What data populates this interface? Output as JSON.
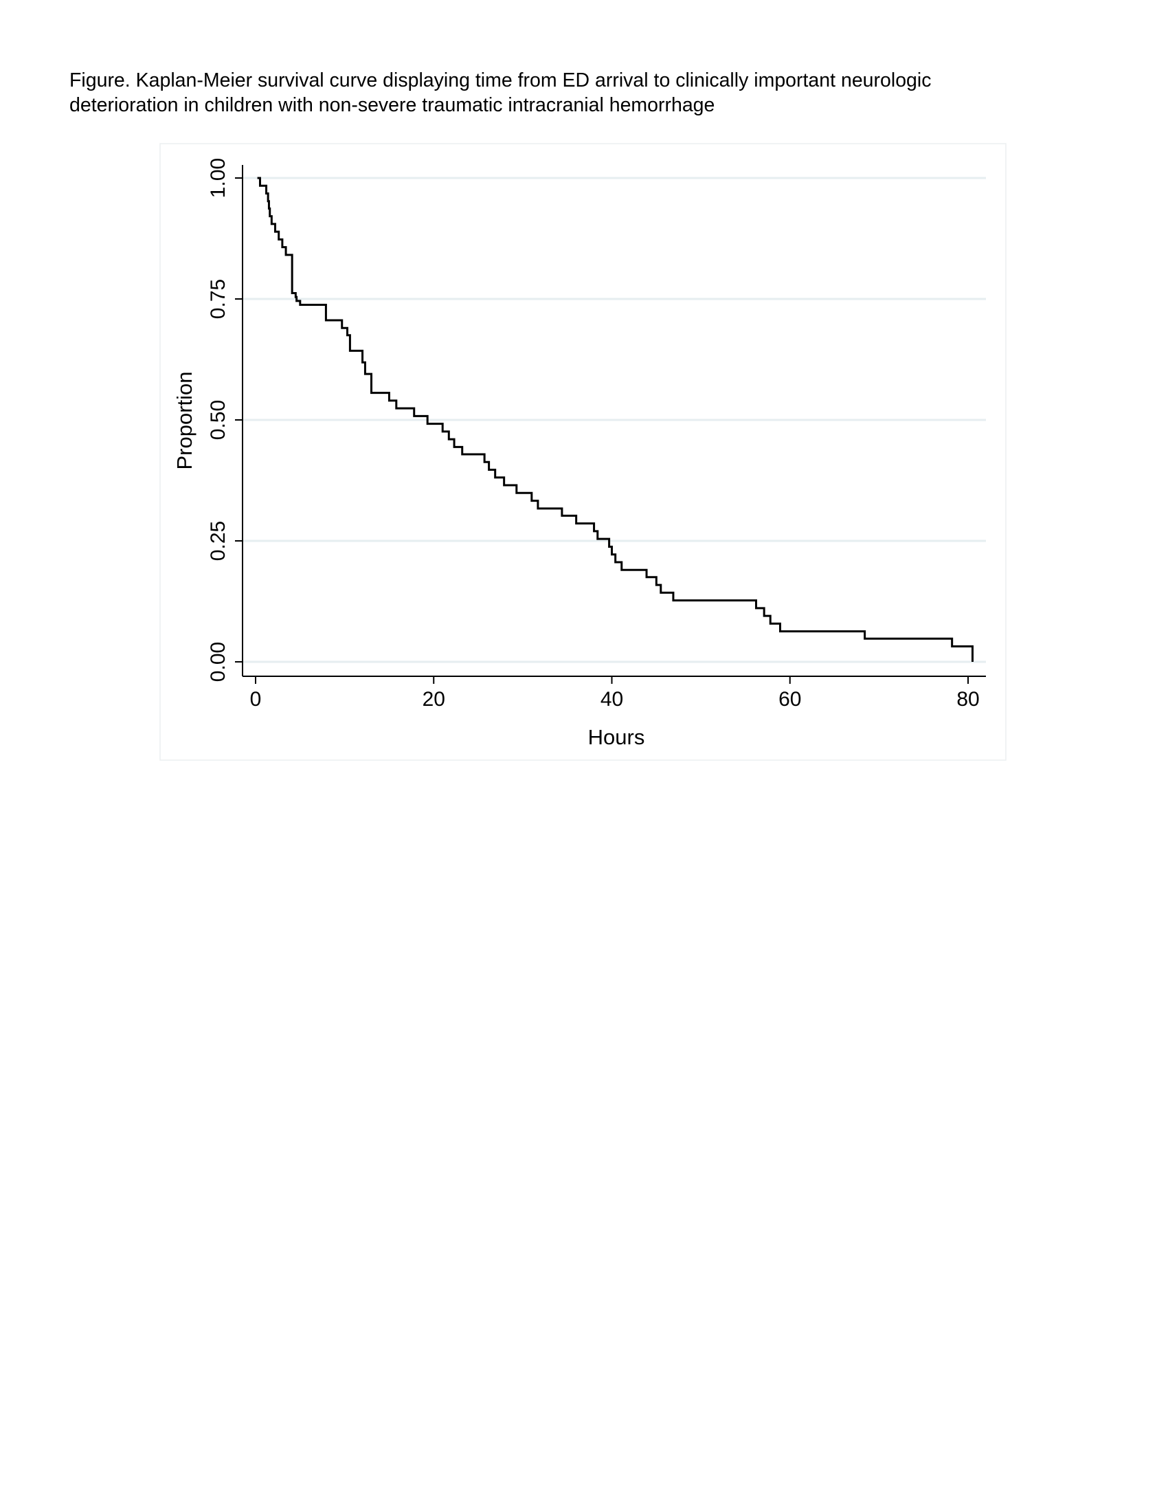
{
  "caption": "Figure. Kaplan-Meier survival curve displaying time from ED arrival to clinically important neurologic deterioration in children with non-severe traumatic intracranial hemorrhage",
  "chart_data": {
    "type": "line",
    "step": true,
    "title": "",
    "xlabel": "Hours",
    "ylabel": "Proportion",
    "xlim": [
      0,
      80
    ],
    "ylim": [
      0,
      1
    ],
    "xticks": [
      0,
      20,
      40,
      60,
      80
    ],
    "xtick_labels": [
      "0",
      "20",
      "40",
      "60",
      "80"
    ],
    "yticks": [
      0,
      0.25,
      0.5,
      0.75,
      1
    ],
    "ytick_labels": [
      "0.00",
      "0.25",
      "0.50",
      "0.75",
      "1.00"
    ],
    "grid": "horizontal",
    "grid_color": "#e6eef0",
    "line_color": "#000000",
    "series": [
      {
        "x": [
          0.2,
          0.5,
          1.2,
          1.4,
          1.5,
          1.6,
          1.8,
          2.2,
          2.6,
          3.0,
          3.4,
          4.1,
          4.5,
          4.6,
          5.0,
          7.9,
          9.7,
          10.3,
          10.6,
          12.0,
          12.3,
          13.0,
          15.0,
          15.8,
          17.8,
          19.3,
          21.0,
          21.7,
          22.3,
          23.2,
          25.7,
          26.2,
          26.9,
          27.9,
          29.3,
          31.0,
          31.7,
          34.4,
          36.0,
          38.0,
          38.4,
          39.7,
          40.0,
          40.4,
          41.1,
          43.9,
          45.0,
          45.5,
          46.9,
          56.2,
          57.1,
          57.8,
          58.9,
          68.4,
          78.2,
          80.5
        ],
        "y": [
          1.0,
          0.984,
          0.968,
          0.952,
          0.937,
          0.921,
          0.905,
          0.889,
          0.873,
          0.857,
          0.841,
          0.762,
          0.754,
          0.746,
          0.738,
          0.706,
          0.69,
          0.675,
          0.643,
          0.619,
          0.595,
          0.556,
          0.54,
          0.524,
          0.508,
          0.492,
          0.476,
          0.46,
          0.444,
          0.429,
          0.413,
          0.397,
          0.381,
          0.365,
          0.349,
          0.333,
          0.317,
          0.302,
          0.286,
          0.27,
          0.254,
          0.238,
          0.222,
          0.206,
          0.19,
          0.175,
          0.159,
          0.143,
          0.127,
          0.111,
          0.095,
          0.079,
          0.063,
          0.048,
          0.032,
          0.016
        ]
      }
    ]
  }
}
